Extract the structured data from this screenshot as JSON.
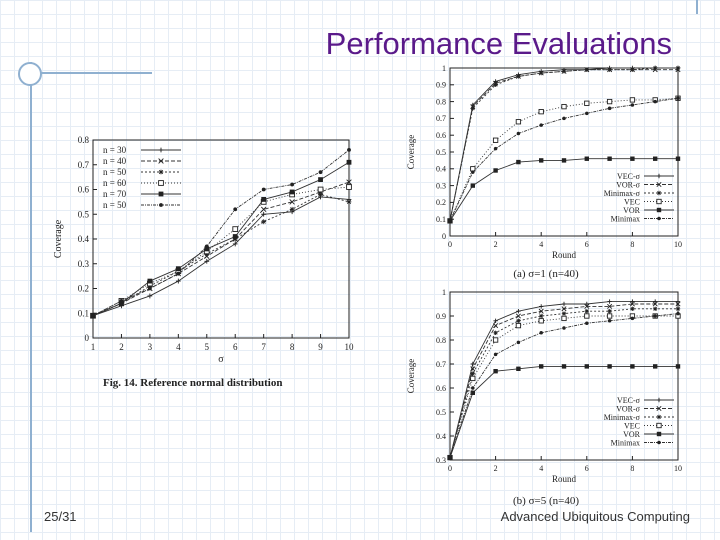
{
  "slide": {
    "title": "Performance Evaluations",
    "page_number": "25/31",
    "course": "Advanced Ubiquitous Computing"
  },
  "chart_data": [
    {
      "type": "line",
      "caption": "Fig. 14.   Reference normal distribution",
      "xlabel": "σ",
      "ylabel": "Coverage",
      "xlim": [
        1,
        10
      ],
      "ylim": [
        0,
        0.8
      ],
      "xticks": [
        1,
        2,
        3,
        4,
        5,
        6,
        7,
        8,
        9,
        10
      ],
      "yticks": [
        0,
        0.1,
        0.2,
        0.3,
        0.4,
        0.5,
        0.6,
        0.7,
        0.8
      ],
      "legend_position": "top-left",
      "x": [
        1,
        2,
        3,
        4,
        5,
        6,
        7,
        8,
        9,
        10
      ],
      "series": [
        {
          "name": "n = 30",
          "marker": "plus",
          "values": [
            0.09,
            0.13,
            0.17,
            0.23,
            0.31,
            0.38,
            0.5,
            0.51,
            0.57,
            0.56
          ]
        },
        {
          "name": "n = 40",
          "marker": "x",
          "values": [
            0.09,
            0.14,
            0.2,
            0.26,
            0.33,
            0.4,
            0.52,
            0.55,
            0.59,
            0.63
          ]
        },
        {
          "name": "n = 50",
          "marker": "star",
          "values": [
            0.09,
            0.14,
            0.21,
            0.27,
            0.34,
            0.4,
            0.47,
            0.52,
            0.58,
            0.55
          ]
        },
        {
          "name": "n = 60",
          "marker": "square",
          "values": [
            0.09,
            0.15,
            0.22,
            0.27,
            0.35,
            0.44,
            0.55,
            0.58,
            0.6,
            0.61
          ]
        },
        {
          "name": "n = 70",
          "marker": "filled-square",
          "values": [
            0.09,
            0.14,
            0.23,
            0.28,
            0.36,
            0.41,
            0.56,
            0.59,
            0.64,
            0.71
          ]
        },
        {
          "name": "n = 50",
          "marker": "circle",
          "values": [
            0.09,
            0.15,
            0.2,
            0.26,
            0.37,
            0.52,
            0.6,
            0.62,
            0.67,
            0.76
          ]
        }
      ]
    },
    {
      "type": "line",
      "caption": "(a) σ=1 (n=40)",
      "xlabel": "Round",
      "ylabel": "Coverage",
      "xlim": [
        0,
        10
      ],
      "ylim": [
        0,
        1
      ],
      "xticks": [
        0,
        2,
        4,
        6,
        8,
        10
      ],
      "yticks": [
        0,
        0.1,
        0.2,
        0.3,
        0.4,
        0.5,
        0.6,
        0.7,
        0.8,
        0.9,
        1
      ],
      "legend_position": "bottom-right",
      "x": [
        0,
        1,
        2,
        3,
        4,
        5,
        6,
        7,
        8,
        9,
        10
      ],
      "series": [
        {
          "name": "VEC-σ",
          "marker": "plus",
          "values": [
            0.09,
            0.78,
            0.92,
            0.96,
            0.98,
            0.99,
            0.99,
            1.0,
            1.0,
            1.0,
            1.0
          ]
        },
        {
          "name": "VOR-σ",
          "marker": "x",
          "values": [
            0.09,
            0.77,
            0.91,
            0.95,
            0.97,
            0.98,
            0.99,
            0.99,
            0.99,
            0.99,
            0.99
          ]
        },
        {
          "name": "Minimax-σ",
          "marker": "star",
          "values": [
            0.09,
            0.76,
            0.9,
            0.95,
            0.97,
            0.98,
            0.99,
            0.99,
            0.99,
            1.0,
            1.0
          ]
        },
        {
          "name": "VEC",
          "marker": "square",
          "values": [
            0.09,
            0.4,
            0.57,
            0.68,
            0.74,
            0.77,
            0.79,
            0.8,
            0.81,
            0.81,
            0.82
          ]
        },
        {
          "name": "VOR",
          "marker": "filled-square",
          "values": [
            0.09,
            0.3,
            0.39,
            0.44,
            0.45,
            0.45,
            0.46,
            0.46,
            0.46,
            0.46,
            0.46
          ]
        },
        {
          "name": "Minimax",
          "marker": "circle",
          "values": [
            0.09,
            0.38,
            0.52,
            0.61,
            0.66,
            0.7,
            0.73,
            0.76,
            0.78,
            0.8,
            0.82
          ]
        }
      ]
    },
    {
      "type": "line",
      "caption": "(b) σ=5 (n=40)",
      "xlabel": "Round",
      "ylabel": "Coverage",
      "xlim": [
        0,
        10
      ],
      "ylim": [
        0.3,
        1
      ],
      "xticks": [
        0,
        2,
        4,
        6,
        8,
        10
      ],
      "yticks": [
        0.3,
        0.4,
        0.5,
        0.6,
        0.7,
        0.8,
        0.9,
        1
      ],
      "legend_position": "bottom-right",
      "x": [
        0,
        1,
        2,
        3,
        4,
        5,
        6,
        7,
        8,
        9,
        10
      ],
      "series": [
        {
          "name": "VEC-σ",
          "marker": "plus",
          "values": [
            0.31,
            0.7,
            0.88,
            0.92,
            0.94,
            0.95,
            0.95,
            0.96,
            0.96,
            0.96,
            0.96
          ]
        },
        {
          "name": "VOR-σ",
          "marker": "x",
          "values": [
            0.31,
            0.68,
            0.86,
            0.9,
            0.92,
            0.93,
            0.94,
            0.94,
            0.95,
            0.95,
            0.95
          ]
        },
        {
          "name": "Minimax-σ",
          "marker": "star",
          "values": [
            0.31,
            0.66,
            0.83,
            0.88,
            0.9,
            0.91,
            0.92,
            0.92,
            0.93,
            0.93,
            0.93
          ]
        },
        {
          "name": "VEC",
          "marker": "square",
          "values": [
            0.31,
            0.64,
            0.8,
            0.86,
            0.88,
            0.89,
            0.9,
            0.9,
            0.9,
            0.9,
            0.9
          ]
        },
        {
          "name": "VOR",
          "marker": "filled-square",
          "values": [
            0.31,
            0.58,
            0.67,
            0.68,
            0.69,
            0.69,
            0.69,
            0.69,
            0.69,
            0.69,
            0.69
          ]
        },
        {
          "name": "Minimax",
          "marker": "circle",
          "values": [
            0.31,
            0.6,
            0.74,
            0.79,
            0.83,
            0.85,
            0.87,
            0.88,
            0.89,
            0.9,
            0.91
          ]
        }
      ]
    }
  ]
}
